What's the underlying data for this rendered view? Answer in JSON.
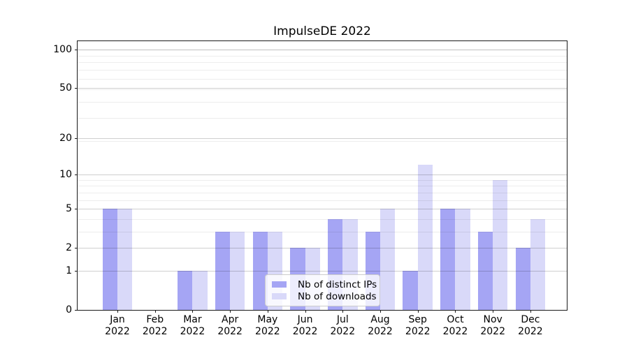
{
  "chart_data": {
    "type": "bar",
    "title": "ImpulseDE 2022",
    "categories": [
      "Jan",
      "Feb",
      "Mar",
      "Apr",
      "May",
      "Jun",
      "Jul",
      "Aug",
      "Sep",
      "Oct",
      "Nov",
      "Dec"
    ],
    "category_year_label": "2022",
    "series": [
      {
        "name": "Nb of distinct IPs",
        "color": "#a5a5f4",
        "values": [
          5,
          0,
          1,
          3,
          3,
          2,
          4,
          3,
          1,
          5,
          3,
          2
        ]
      },
      {
        "name": "Nb of downloads",
        "color": "#d9d9f9",
        "values": [
          5,
          0,
          1,
          3,
          3,
          2,
          4,
          5,
          12,
          5,
          9,
          4
        ]
      }
    ],
    "ylabel": "",
    "xlabel": "",
    "yscale": "log10(1+y)",
    "yticks": [
      0,
      1,
      2,
      5,
      10,
      20,
      50,
      100
    ],
    "ylim": [
      0,
      115.6
    ],
    "grid": "horizontal, major and minor",
    "legend_position": "lower center inside plot"
  }
}
